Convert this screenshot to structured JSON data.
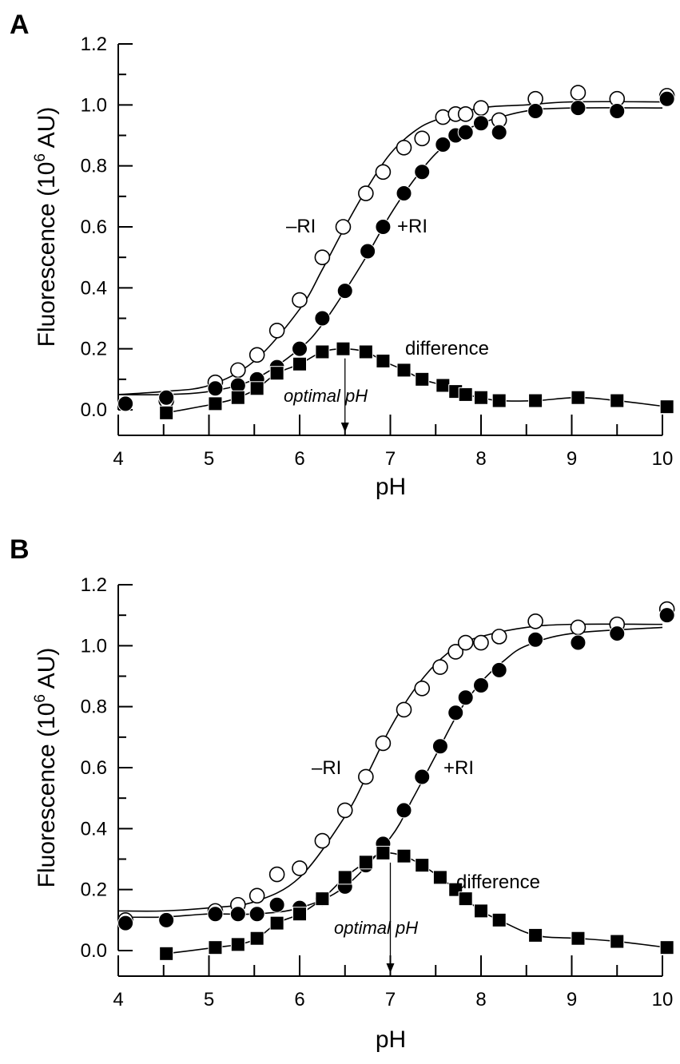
{
  "chart_data": [
    {
      "panel": "A",
      "type": "scatter",
      "xlabel": "pH",
      "ylabel_main": "Fluorescence (10",
      "ylabel_sup": "6",
      "ylabel_tail": " AU)",
      "xlim": [
        4,
        10
      ],
      "ylim": [
        0,
        1.2
      ],
      "xticks": [
        "4",
        "5",
        "6",
        "7",
        "8",
        "9",
        "10"
      ],
      "yticks": [
        "0.0",
        "0.2",
        "0.4",
        "0.6",
        "0.8",
        "1.0",
        "1.2"
      ],
      "series": [
        {
          "name": "–RI",
          "marker": "open-circle",
          "x": [
            4.08,
            4.53,
            5.07,
            5.32,
            5.53,
            5.75,
            6.0,
            6.25,
            6.48,
            6.73,
            6.92,
            7.15,
            7.35,
            7.58,
            7.72,
            7.83,
            8.0,
            8.2,
            8.6,
            9.07,
            9.5,
            10.05
          ],
          "y": [
            0.02,
            0.03,
            0.09,
            0.13,
            0.18,
            0.26,
            0.36,
            0.5,
            0.6,
            0.71,
            0.78,
            0.86,
            0.89,
            0.96,
            0.97,
            0.97,
            0.99,
            0.95,
            1.02,
            1.04,
            1.02,
            1.03
          ],
          "fit": {
            "x": [
              4.0,
              4.5,
              5.0,
              5.5,
              6.0,
              6.25,
              6.5,
              6.75,
              7.0,
              7.25,
              7.5,
              8.0,
              8.5,
              9.0,
              10.0
            ],
            "y": [
              0.05,
              0.06,
              0.08,
              0.16,
              0.33,
              0.46,
              0.6,
              0.73,
              0.84,
              0.91,
              0.95,
              0.99,
              1.0,
              1.01,
              1.01
            ]
          }
        },
        {
          "name": "+RI",
          "marker": "filled-circle",
          "x": [
            4.08,
            4.53,
            5.07,
            5.32,
            5.53,
            5.75,
            6.0,
            6.25,
            6.5,
            6.75,
            6.92,
            7.15,
            7.35,
            7.58,
            7.72,
            7.83,
            8.0,
            8.2,
            8.6,
            9.07,
            9.5,
            10.05
          ],
          "y": [
            0.02,
            0.04,
            0.07,
            0.08,
            0.1,
            0.14,
            0.2,
            0.3,
            0.39,
            0.52,
            0.6,
            0.71,
            0.78,
            0.87,
            0.9,
            0.91,
            0.94,
            0.91,
            0.98,
            0.99,
            0.98,
            1.02
          ],
          "fit": {
            "x": [
              4.0,
              4.5,
              5.0,
              5.5,
              6.0,
              6.25,
              6.5,
              6.75,
              7.0,
              7.25,
              7.5,
              7.75,
              8.0,
              8.5,
              9.0,
              10.0
            ],
            "y": [
              0.05,
              0.05,
              0.06,
              0.1,
              0.2,
              0.28,
              0.39,
              0.51,
              0.64,
              0.75,
              0.84,
              0.9,
              0.94,
              0.98,
              0.99,
              0.99
            ]
          }
        },
        {
          "name": "difference",
          "marker": "filled-square",
          "connected": true,
          "x": [
            4.53,
            5.07,
            5.32,
            5.53,
            5.75,
            6.0,
            6.25,
            6.48,
            6.73,
            6.92,
            7.15,
            7.35,
            7.58,
            7.72,
            7.83,
            8.0,
            8.2,
            8.6,
            9.07,
            9.5,
            10.05
          ],
          "y": [
            -0.01,
            0.02,
            0.04,
            0.07,
            0.12,
            0.15,
            0.19,
            0.2,
            0.19,
            0.16,
            0.13,
            0.1,
            0.08,
            0.06,
            0.05,
            0.04,
            0.03,
            0.03,
            0.04,
            0.03,
            0.01
          ]
        }
      ],
      "annotations": {
        "optimal_text": "optimal pH",
        "optimal_ph": 6.5,
        "optimal_value": 0.2
      }
    },
    {
      "panel": "B",
      "type": "scatter",
      "xlabel": "pH",
      "ylabel_main": "Fluorescence (10",
      "ylabel_sup": "6",
      "ylabel_tail": " AU)",
      "xlim": [
        4,
        10
      ],
      "ylim": [
        0,
        1.2
      ],
      "xticks": [
        "4",
        "5",
        "6",
        "7",
        "8",
        "9",
        "10"
      ],
      "yticks": [
        "0.0",
        "0.2",
        "0.4",
        "0.6",
        "0.8",
        "1.0",
        "1.2"
      ],
      "series": [
        {
          "name": "–RI",
          "marker": "open-circle",
          "x": [
            4.08,
            4.53,
            5.07,
            5.32,
            5.53,
            5.75,
            6.0,
            6.25,
            6.5,
            6.73,
            6.92,
            7.15,
            7.35,
            7.55,
            7.72,
            7.83,
            8.0,
            8.2,
            8.6,
            9.07,
            9.5,
            10.05
          ],
          "y": [
            0.1,
            0.1,
            0.13,
            0.15,
            0.18,
            0.25,
            0.27,
            0.36,
            0.46,
            0.57,
            0.68,
            0.79,
            0.86,
            0.93,
            0.98,
            1.01,
            1.01,
            1.03,
            1.08,
            1.06,
            1.07,
            1.12
          ],
          "fit": {
            "x": [
              4.0,
              4.5,
              5.0,
              5.5,
              6.0,
              6.5,
              6.75,
              7.0,
              7.25,
              7.5,
              7.75,
              8.0,
              8.5,
              9.0,
              10.0
            ],
            "y": [
              0.13,
              0.13,
              0.14,
              0.16,
              0.24,
              0.44,
              0.58,
              0.73,
              0.85,
              0.94,
              1.0,
              1.03,
              1.06,
              1.07,
              1.07
            ]
          }
        },
        {
          "name": "+RI",
          "marker": "filled-circle",
          "x": [
            4.08,
            4.53,
            5.07,
            5.32,
            5.53,
            5.75,
            6.0,
            6.25,
            6.5,
            6.73,
            6.92,
            7.15,
            7.35,
            7.55,
            7.72,
            7.83,
            8.0,
            8.2,
            8.6,
            9.07,
            9.5,
            10.05
          ],
          "y": [
            0.09,
            0.1,
            0.12,
            0.12,
            0.12,
            0.15,
            0.14,
            0.17,
            0.21,
            0.28,
            0.35,
            0.46,
            0.57,
            0.67,
            0.78,
            0.83,
            0.87,
            0.92,
            1.02,
            1.01,
            1.04,
            1.1
          ],
          "fit": {
            "x": [
              4.0,
              4.5,
              5.0,
              5.5,
              6.0,
              6.5,
              7.0,
              7.25,
              7.5,
              7.75,
              8.0,
              8.25,
              8.5,
              9.0,
              10.0
            ],
            "y": [
              0.11,
              0.11,
              0.12,
              0.12,
              0.14,
              0.21,
              0.37,
              0.5,
              0.64,
              0.78,
              0.88,
              0.95,
              1.0,
              1.04,
              1.06
            ]
          }
        },
        {
          "name": "difference",
          "marker": "filled-square",
          "connected": true,
          "x": [
            4.53,
            5.07,
            5.32,
            5.53,
            5.75,
            6.0,
            6.25,
            6.5,
            6.73,
            6.92,
            7.15,
            7.35,
            7.55,
            7.72,
            7.83,
            8.0,
            8.2,
            8.6,
            9.07,
            9.5,
            10.05
          ],
          "y": [
            -0.01,
            0.01,
            0.02,
            0.04,
            0.09,
            0.12,
            0.17,
            0.24,
            0.29,
            0.32,
            0.31,
            0.28,
            0.24,
            0.2,
            0.17,
            0.13,
            0.1,
            0.05,
            0.04,
            0.03,
            0.01
          ]
        }
      ],
      "annotations": {
        "optimal_text": "optimal pH",
        "optimal_ph": 7.0,
        "optimal_value": 0.32
      }
    }
  ]
}
